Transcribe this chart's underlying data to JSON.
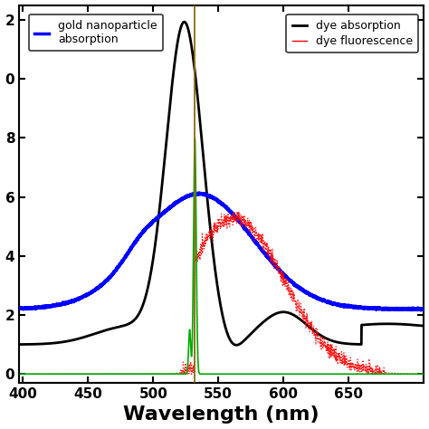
{
  "xlim": [
    400,
    700
  ],
  "ylim_display": [
    -0.3,
    12.5
  ],
  "xlabel": "Wavelength (nm)",
  "ytick_positions": [
    0,
    2,
    4,
    6,
    8,
    10,
    12
  ],
  "ytick_labels": [
    "0",
    "2",
    "4",
    "6",
    "8",
    "0",
    "2"
  ],
  "xtick_positions": [
    400,
    450,
    500,
    550,
    600,
    650
  ],
  "xtick_labels": [
    "400",
    "450",
    "500",
    "550",
    "600",
    "650"
  ],
  "vertical_line_x": 532,
  "vertical_line_color": "#8B6914",
  "blue_color": "#0000ff",
  "black_color": "#000000",
  "red_color": "#ff0000",
  "green_color": "#00aa00",
  "legend1_text": [
    "gold nanoparticle",
    "absorption"
  ],
  "legend2_text": [
    "dye absorption",
    "dye fluorescence"
  ],
  "xlabel_fontsize": 16,
  "tick_fontsize": 11
}
